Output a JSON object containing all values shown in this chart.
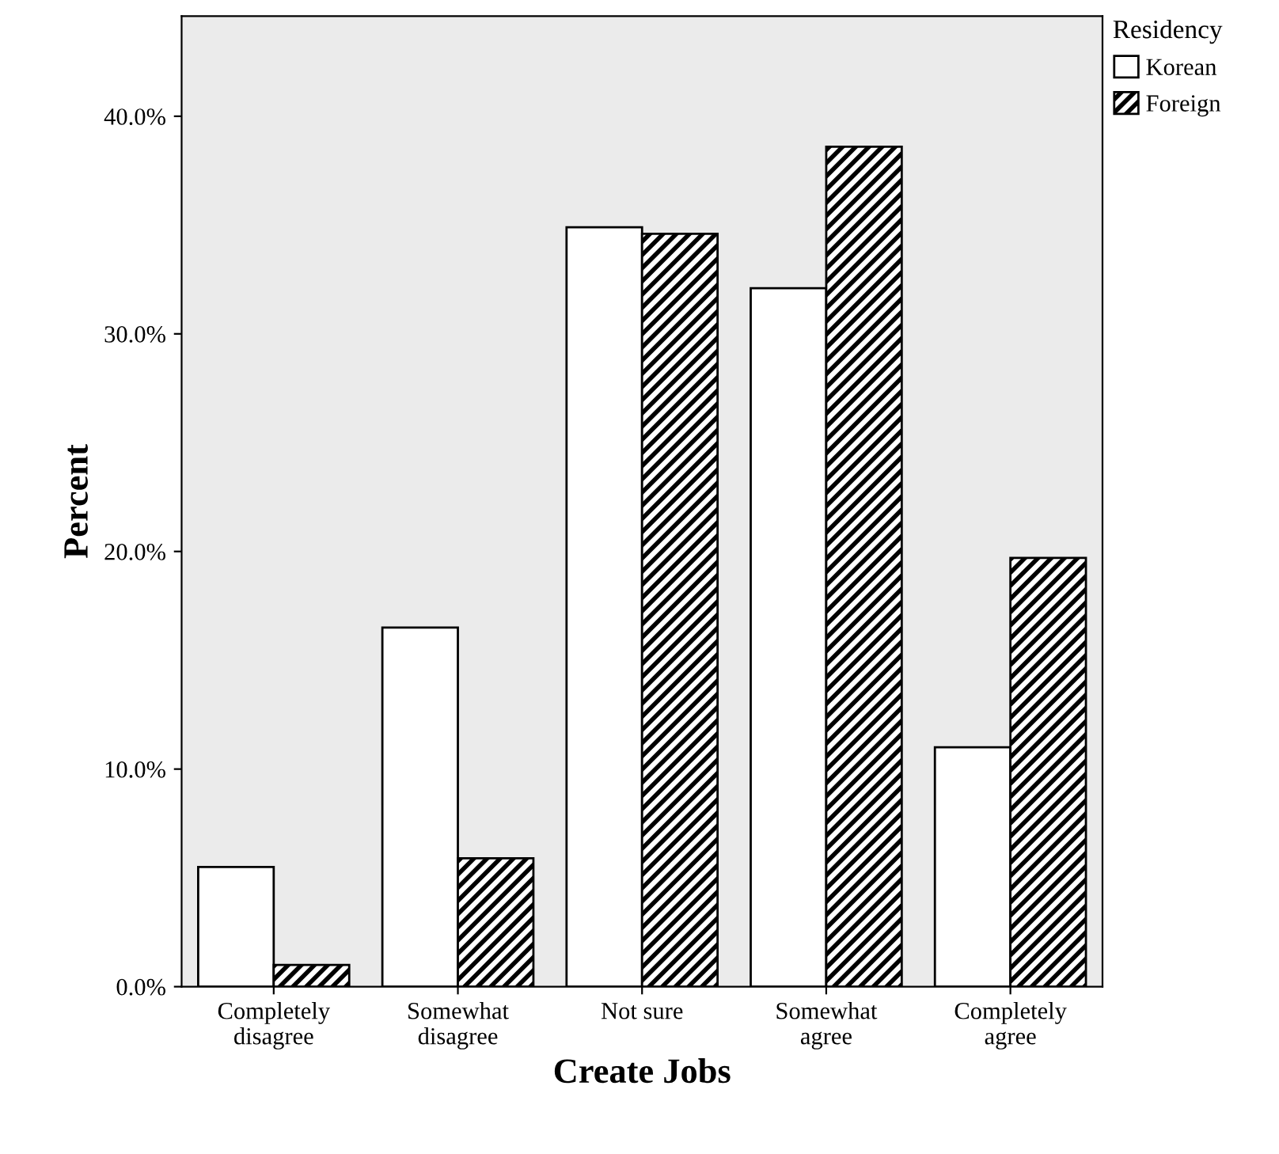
{
  "chart_data": {
    "type": "bar",
    "xlabel": "Create Jobs",
    "ylabel": "Percent",
    "legend_title": "Residency",
    "legend": "top right",
    "categories": [
      "Completely\ndisagree",
      "Somewhat\ndisagree",
      "Not sure",
      "Somewhat\nagree",
      "Completely\nagree"
    ],
    "series": [
      {
        "name": "Korean",
        "color": "#ffffff",
        "values": [
          5.5,
          16.5,
          34.9,
          32.1,
          11.0
        ]
      },
      {
        "name": "Foreign",
        "color": "#000000",
        "values": [
          1.0,
          5.9,
          34.6,
          38.6,
          19.7
        ]
      }
    ],
    "ylim": [
      0,
      44.6
    ],
    "yticks": [
      {
        "value": 0,
        "label": "0.0%"
      },
      {
        "value": 10,
        "label": "10.0%"
      },
      {
        "value": 20,
        "label": "20.0%"
      },
      {
        "value": 30,
        "label": "30.0%"
      },
      {
        "value": 40,
        "label": "40.0%"
      }
    ],
    "grid": false
  }
}
